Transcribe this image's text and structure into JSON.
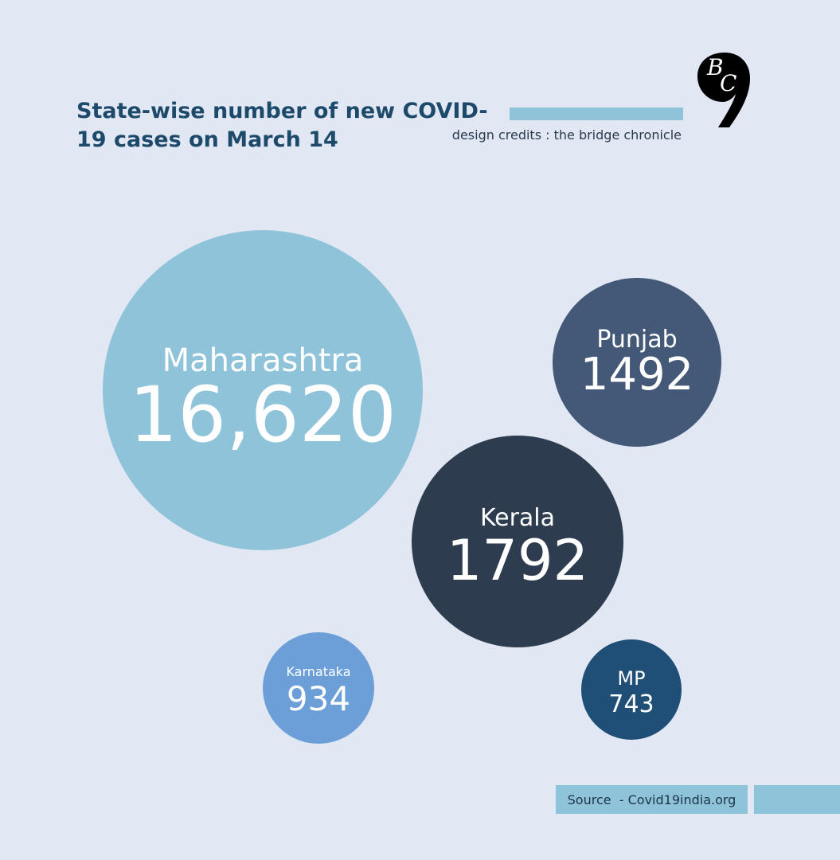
{
  "header": {
    "title": "State-wise number of new COVID-19 cases on March 14",
    "credits": "design credits : the bridge chronicle",
    "logo_text": "BC"
  },
  "footer": {
    "source": "Source  - Covid19india.org"
  },
  "colors": {
    "background": "#e1e7f3",
    "title": "#1d4a6b",
    "accent_bar": "#8fc3da"
  },
  "chart_data": {
    "type": "bubble",
    "title": "State-wise number of new COVID-19 cases on March 14",
    "series": [
      {
        "name": "Maharashtra",
        "value": 16620,
        "display_value": "16,620",
        "color": "#8fc3da"
      },
      {
        "name": "Kerala",
        "value": 1792,
        "display_value": "1792",
        "color": "#2d3c4e"
      },
      {
        "name": "Punjab",
        "value": 1492,
        "display_value": "1492",
        "color": "#445977"
      },
      {
        "name": "Karnataka",
        "value": 934,
        "display_value": "934",
        "color": "#6c9fd8"
      },
      {
        "name": "MP",
        "value": 743,
        "display_value": "743",
        "color": "#1f4e76"
      }
    ]
  }
}
